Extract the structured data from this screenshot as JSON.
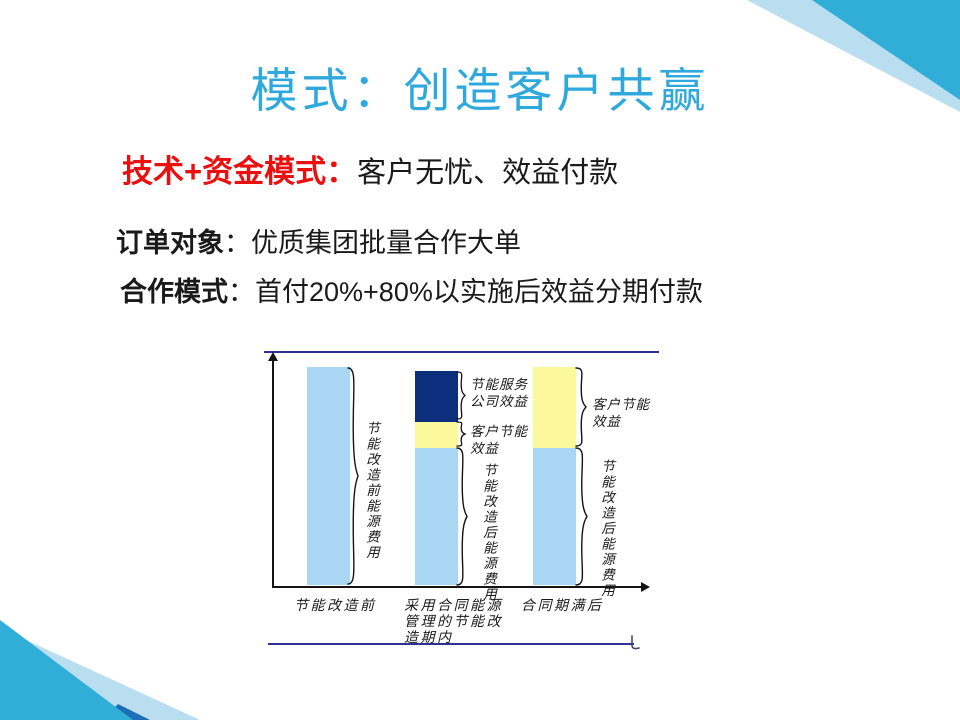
{
  "slide": {
    "title": "模式：创造客户共赢",
    "headline": {
      "lead": "技术+资金模式：",
      "rest": "客户无忧、效益付款"
    },
    "info_lines": [
      {
        "lead": "订单对象",
        "rest": "：优质集团批量合作大单"
      },
      {
        "lead": "合作模式",
        "rest": "：首付20%+80%以实施后效益分期付款"
      }
    ],
    "colors": {
      "title_blue": "#2fa9dd",
      "highlight_red": "#ea1010",
      "accent_teal": "#31aed8",
      "accent_pale": "#b9def0",
      "accent_navy": "#1d6fb5",
      "frame_navy": "#2e3192"
    }
  },
  "chart_data": {
    "type": "bar",
    "subtype": "stacked-conceptual",
    "unit_note": "relative bar height, pre-retrofit energy cost = 100",
    "categories": [
      "节能改造前",
      "采用合同能源管理的节能改造期内",
      "合同期满后"
    ],
    "bars": [
      {
        "segments": [
          {
            "name": "节能改造前能源费用",
            "value": 100,
            "color": "#a9d6f3"
          }
        ]
      },
      {
        "segments": [
          {
            "name": "节能改造后能源费用",
            "value": 63,
            "color": "#a9d6f3"
          },
          {
            "name": "客户节能效益",
            "value": 12,
            "color": "#fcf99d"
          },
          {
            "name": "节能服务公司效益",
            "value": 23,
            "color": "#0d2d7d"
          }
        ]
      },
      {
        "segments": [
          {
            "name": "节能改造后能源费用",
            "value": 63,
            "color": "#a9d6f3"
          },
          {
            "name": "客户节能效益",
            "value": 37,
            "color": "#fcf99d"
          }
        ]
      }
    ],
    "labels": {
      "pre_cost_vertical": "节能改造前能源费用",
      "esco_benefit": [
        "节能服务",
        "公司效益"
      ],
      "client_benefit": [
        "客户节能",
        "效益"
      ],
      "post_cost_vertical": "节能改造后能源费用"
    },
    "x_labels": [
      {
        "lines": [
          "节能改造前"
        ]
      },
      {
        "lines": [
          "采用合同能源",
          "管理的节能改",
          "造期内"
        ]
      },
      {
        "lines": [
          "合同期满后"
        ]
      }
    ],
    "legend": "none",
    "axes": "unlabeled arrow axes (cost vs period)"
  }
}
